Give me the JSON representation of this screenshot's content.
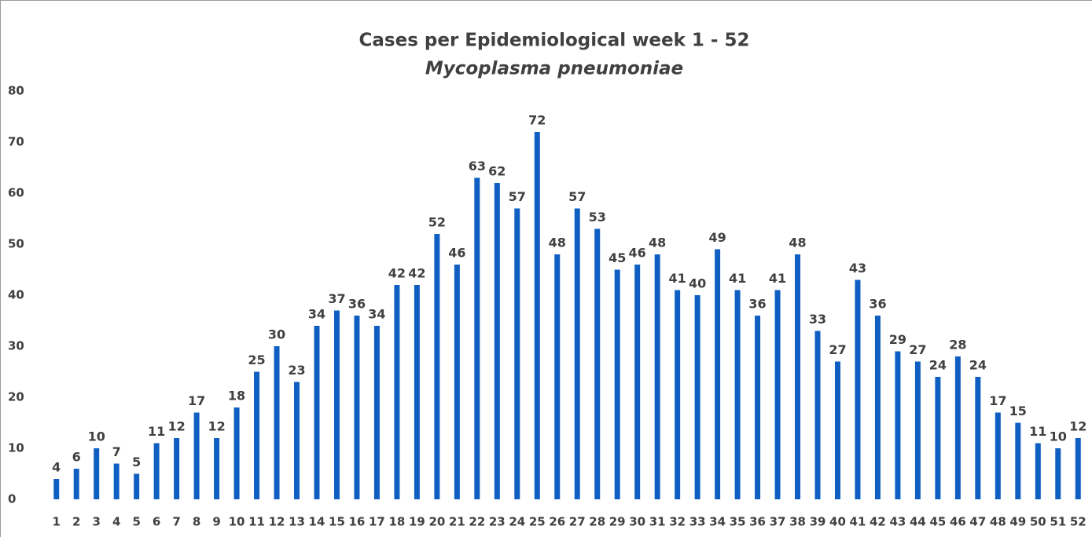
{
  "chart_data": {
    "type": "bar",
    "title": "Cases per Epidemiological week 1 - 52",
    "subtitle": "Mycoplasma pneumoniae",
    "categories": [
      "1",
      "2",
      "3",
      "4",
      "5",
      "6",
      "7",
      "8",
      "9",
      "10",
      "11",
      "12",
      "13",
      "14",
      "15",
      "16",
      "17",
      "18",
      "19",
      "20",
      "21",
      "22",
      "23",
      "24",
      "25",
      "26",
      "27",
      "28",
      "29",
      "30",
      "31",
      "32",
      "33",
      "34",
      "35",
      "36",
      "37",
      "38",
      "39",
      "40",
      "41",
      "42",
      "43",
      "44",
      "45",
      "46",
      "47",
      "48",
      "49",
      "50",
      "51",
      "52"
    ],
    "values": [
      4,
      6,
      10,
      7,
      5,
      11,
      12,
      17,
      12,
      18,
      25,
      30,
      23,
      34,
      37,
      36,
      34,
      42,
      42,
      52,
      46,
      63,
      62,
      57,
      72,
      48,
      57,
      53,
      45,
      46,
      48,
      41,
      40,
      49,
      41,
      36,
      41,
      48,
      33,
      27,
      43,
      36,
      29,
      27,
      24,
      28,
      24,
      17,
      15,
      11,
      10,
      12
    ],
    "color": "#0f5fc2",
    "ylim": [
      0,
      80
    ],
    "yticks": [
      0,
      10,
      20,
      30,
      40,
      50,
      60,
      70,
      80
    ],
    "grid": false
  }
}
